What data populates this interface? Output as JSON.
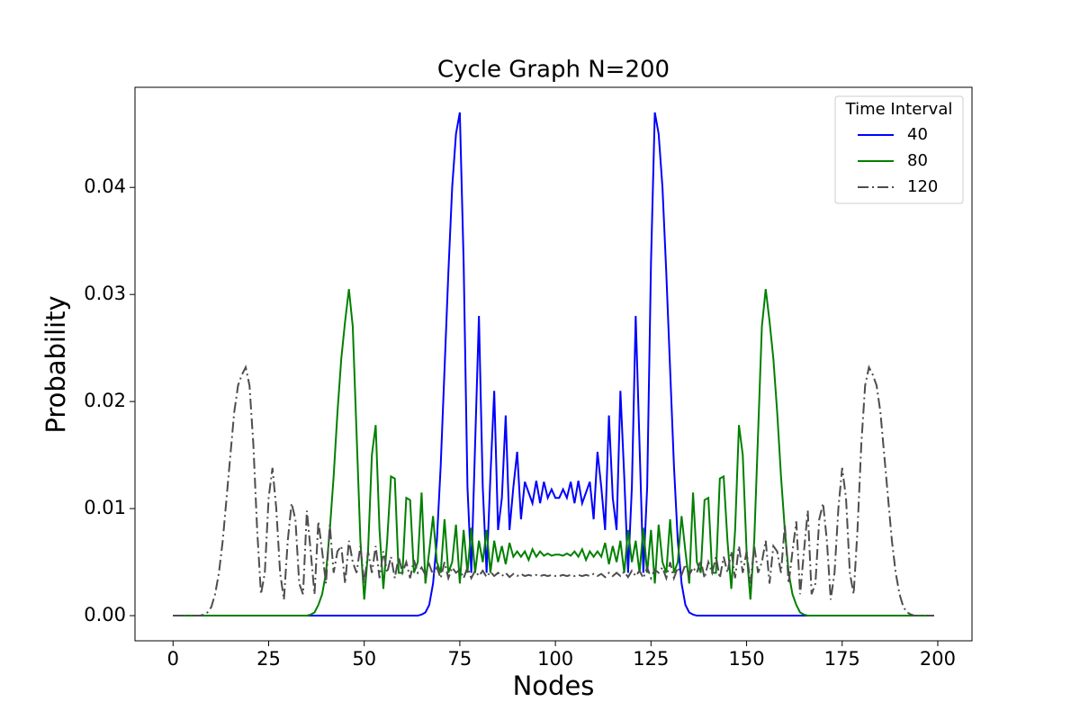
{
  "chart_data": {
    "type": "line",
    "title": "Cycle Graph N=200",
    "x_label": "Nodes",
    "y_label": "Probability",
    "legend_title": "Time Interval",
    "legend_position": "upper right",
    "grid": false,
    "xlim": [
      -9.95,
      208.95
    ],
    "ylim": [
      -0.00235,
      0.04935
    ],
    "xticks": [
      0,
      25,
      50,
      75,
      100,
      125,
      150,
      175,
      200
    ],
    "yticks": [
      {
        "value": 0,
        "label": "0.00"
      },
      {
        "value": 0.01,
        "label": "0.01"
      },
      {
        "value": 0.02,
        "label": "0.02"
      },
      {
        "value": 0.03,
        "label": "0.03"
      },
      {
        "value": 0.04,
        "label": "0.04"
      }
    ],
    "x": [
      0,
      1,
      2,
      3,
      4,
      5,
      6,
      7,
      8,
      9,
      10,
      11,
      12,
      13,
      14,
      15,
      16,
      17,
      18,
      19,
      20,
      21,
      22,
      23,
      24,
      25,
      26,
      27,
      28,
      29,
      30,
      31,
      32,
      33,
      34,
      35,
      36,
      37,
      38,
      39,
      40,
      41,
      42,
      43,
      44,
      45,
      46,
      47,
      48,
      49,
      50,
      51,
      52,
      53,
      54,
      55,
      56,
      57,
      58,
      59,
      60,
      61,
      62,
      63,
      64,
      65,
      66,
      67,
      68,
      69,
      70,
      71,
      72,
      73,
      74,
      75,
      76,
      77,
      78,
      79,
      80,
      81,
      82,
      83,
      84,
      85,
      86,
      87,
      88,
      89,
      90,
      91,
      92,
      93,
      94,
      95,
      96,
      97,
      98,
      99,
      100,
      101,
      102,
      103,
      104,
      105,
      106,
      107,
      108,
      109,
      110,
      111,
      112,
      113,
      114,
      115,
      116,
      117,
      118,
      119,
      120,
      121,
      122,
      123,
      124,
      125,
      126,
      127,
      128,
      129,
      130,
      131,
      132,
      133,
      134,
      135,
      136,
      137,
      138,
      139,
      140,
      141,
      142,
      143,
      144,
      145,
      146,
      147,
      148,
      149,
      150,
      151,
      152,
      153,
      154,
      155,
      156,
      157,
      158,
      159,
      160,
      161,
      162,
      163,
      164,
      165,
      166,
      167,
      168,
      169,
      170,
      171,
      172,
      173,
      174,
      175,
      176,
      177,
      178,
      179,
      180,
      181,
      182,
      183,
      184,
      185,
      186,
      187,
      188,
      189,
      190,
      191,
      192,
      193,
      194,
      195,
      196,
      197,
      198,
      199
    ],
    "series": [
      {
        "name": "40",
        "color": "#0000ff",
        "linestyle": "solid",
        "values": [
          0,
          0,
          0,
          0,
          0,
          0,
          0,
          0,
          0,
          0,
          0,
          0,
          0,
          0,
          0,
          0,
          0,
          0,
          0,
          0,
          0,
          0,
          0,
          0,
          0,
          0,
          0,
          0,
          0,
          0,
          0,
          0,
          0,
          0,
          0,
          0,
          0,
          0,
          0,
          0,
          0,
          0,
          0,
          0,
          0,
          0,
          0,
          0,
          0,
          0,
          0,
          0,
          0,
          0,
          0,
          0,
          0,
          0,
          0,
          0,
          0,
          0,
          0,
          0,
          0,
          0.0001,
          0.0003,
          0.001,
          0.003,
          0.007,
          0.014,
          0.023,
          0.032,
          0.04,
          0.045,
          0.047,
          0.033,
          0.012,
          0.004,
          0.016,
          0.028,
          0.012,
          0.004,
          0.013,
          0.021,
          0.008,
          0.011,
          0.0187,
          0.008,
          0.012,
          0.0153,
          0.009,
          0.0125,
          0.0115,
          0.0105,
          0.0126,
          0.0105,
          0.0125,
          0.011,
          0.0118,
          0.011,
          0.011,
          0.0118,
          0.011,
          0.0125,
          0.0105,
          0.0126,
          0.0105,
          0.0115,
          0.0125,
          0.009,
          0.0153,
          0.012,
          0.008,
          0.0187,
          0.011,
          0.008,
          0.021,
          0.013,
          0.004,
          0.012,
          0.028,
          0.016,
          0.004,
          0.012,
          0.033,
          0.047,
          0.045,
          0.04,
          0.032,
          0.023,
          0.014,
          0.007,
          0.003,
          0.001,
          0.0003,
          0.0001,
          0,
          0,
          0,
          0,
          0,
          0,
          0,
          0,
          0,
          0,
          0,
          0,
          0,
          0,
          0,
          0,
          0,
          0,
          0,
          0,
          0,
          0,
          0,
          0,
          0,
          0,
          0,
          0,
          0,
          0,
          0,
          0,
          0,
          0,
          0,
          0,
          0,
          0,
          0,
          0,
          0,
          0,
          0,
          0,
          0,
          0,
          0,
          0,
          0,
          0,
          0,
          0,
          0,
          0,
          0,
          0,
          0,
          0,
          0,
          0,
          0,
          0,
          0
        ]
      },
      {
        "name": "80",
        "color": "#008000",
        "linestyle": "solid",
        "values": [
          0,
          0,
          0,
          0,
          0,
          0,
          0,
          0,
          0,
          0,
          0,
          0,
          0,
          0,
          0,
          0,
          0,
          0,
          0,
          0,
          0,
          0,
          0,
          0,
          0,
          0,
          0,
          0,
          0,
          0,
          0,
          0,
          0,
          0,
          0,
          0,
          0.0001,
          0.0003,
          0.001,
          0.002,
          0.004,
          0.008,
          0.013,
          0.019,
          0.024,
          0.0275,
          0.0305,
          0.027,
          0.017,
          0.007,
          0.0015,
          0.006,
          0.015,
          0.0178,
          0.008,
          0.0025,
          0.007,
          0.013,
          0.0128,
          0.004,
          0.004,
          0.011,
          0.0108,
          0.004,
          0.005,
          0.0115,
          0.003,
          0.006,
          0.0093,
          0.005,
          0.004,
          0.009,
          0.004,
          0.005,
          0.0085,
          0.003,
          0.008,
          0.004,
          0.0082,
          0.004,
          0.007,
          0.005,
          0.008,
          0.004,
          0.007,
          0.005,
          0.0065,
          0.0048,
          0.0068,
          0.0055,
          0.006,
          0.0055,
          0.006,
          0.0052,
          0.0062,
          0.0055,
          0.006,
          0.0056,
          0.0058,
          0.0056,
          0.0057,
          0.0057,
          0.0056,
          0.0058,
          0.0056,
          0.006,
          0.0055,
          0.0062,
          0.0052,
          0.006,
          0.0055,
          0.006,
          0.0055,
          0.0068,
          0.0048,
          0.0065,
          0.005,
          0.007,
          0.004,
          0.008,
          0.005,
          0.007,
          0.004,
          0.0082,
          0.004,
          0.008,
          0.003,
          0.0085,
          0.005,
          0.004,
          0.009,
          0.004,
          0.005,
          0.0093,
          0.006,
          0.003,
          0.0115,
          0.005,
          0.004,
          0.0108,
          0.011,
          0.004,
          0.004,
          0.0128,
          0.013,
          0.007,
          0.0025,
          0.008,
          0.0178,
          0.015,
          0.006,
          0.0015,
          0.007,
          0.017,
          0.027,
          0.0305,
          0.0275,
          0.024,
          0.019,
          0.013,
          0.008,
          0.004,
          0.002,
          0.001,
          0.0003,
          0.0001,
          0,
          0,
          0,
          0,
          0,
          0,
          0,
          0,
          0,
          0,
          0,
          0,
          0,
          0,
          0,
          0,
          0,
          0,
          0,
          0,
          0,
          0,
          0,
          0,
          0,
          0,
          0,
          0,
          0,
          0,
          0,
          0,
          0,
          0
        ]
      },
      {
        "name": "120",
        "color": "#4d4d4d",
        "linestyle": "dashdot",
        "values": [
          0,
          0,
          0,
          0,
          0,
          0,
          0,
          0,
          0.0001,
          0.0003,
          0.0008,
          0.002,
          0.004,
          0.007,
          0.011,
          0.015,
          0.019,
          0.0215,
          0.0225,
          0.0232,
          0.0215,
          0.016,
          0.008,
          0.002,
          0.004,
          0.011,
          0.0138,
          0.01,
          0.004,
          0.0015,
          0.007,
          0.0105,
          0.009,
          0.003,
          0.002,
          0.0098,
          0.006,
          0.002,
          0.0088,
          0.006,
          0.003,
          0.0085,
          0.004,
          0.006,
          0.0065,
          0.003,
          0.007,
          0.005,
          0.004,
          0.0065,
          0.003,
          0.006,
          0.004,
          0.0065,
          0.0035,
          0.006,
          0.004,
          0.0055,
          0.0035,
          0.0055,
          0.004,
          0.005,
          0.0035,
          0.0052,
          0.004,
          0.0045,
          0.0038,
          0.0048,
          0.0038,
          0.0045,
          0.0035,
          0.005,
          0.0035,
          0.0045,
          0.004,
          0.0043,
          0.0035,
          0.0045,
          0.0035,
          0.0042,
          0.0037,
          0.0042,
          0.0036,
          0.0041,
          0.0037,
          0.004,
          0.0037,
          0.004,
          0.0036,
          0.0039,
          0.0037,
          0.0039,
          0.0037,
          0.0038,
          0.0037,
          0.0038,
          0.0037,
          0.0038,
          0.0037,
          0.0038,
          0.0037,
          0.0037,
          0.0038,
          0.0037,
          0.0038,
          0.0037,
          0.0038,
          0.0037,
          0.0038,
          0.0037,
          0.0039,
          0.0037,
          0.0039,
          0.0036,
          0.004,
          0.0037,
          0.004,
          0.0037,
          0.0041,
          0.0036,
          0.0042,
          0.0037,
          0.0042,
          0.0035,
          0.0045,
          0.0035,
          0.0043,
          0.004,
          0.0045,
          0.0035,
          0.005,
          0.0035,
          0.0045,
          0.0038,
          0.0048,
          0.0038,
          0.0045,
          0.004,
          0.0052,
          0.0035,
          0.005,
          0.004,
          0.0055,
          0.0035,
          0.0055,
          0.004,
          0.006,
          0.0035,
          0.0065,
          0.004,
          0.006,
          0.003,
          0.0065,
          0.004,
          0.005,
          0.007,
          0.003,
          0.0065,
          0.006,
          0.004,
          0.0085,
          0.003,
          0.006,
          0.0088,
          0.002,
          0.006,
          0.0098,
          0.002,
          0.003,
          0.009,
          0.0105,
          0.007,
          0.0015,
          0.004,
          0.01,
          0.0138,
          0.011,
          0.004,
          0.002,
          0.008,
          0.016,
          0.0215,
          0.0232,
          0.0225,
          0.0215,
          0.019,
          0.015,
          0.011,
          0.007,
          0.004,
          0.002,
          0.0008,
          0.0003,
          0.0001,
          0,
          0,
          0,
          0,
          0,
          0
        ]
      }
    ]
  }
}
